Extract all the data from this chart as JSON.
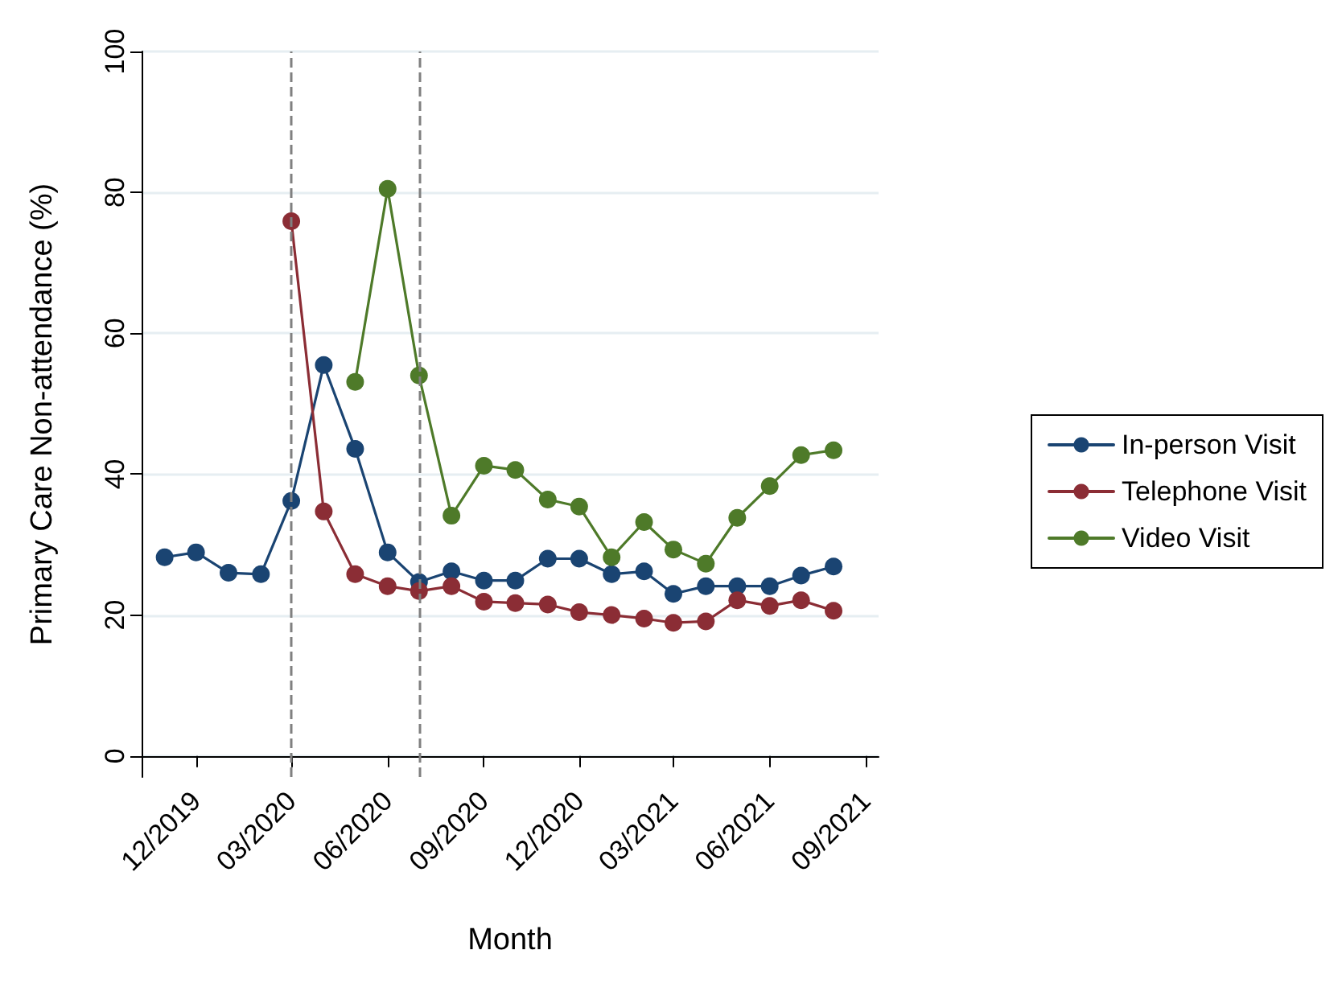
{
  "chart_data": {
    "type": "line",
    "xlabel": "Month",
    "ylabel": "Primary Care Non-attendance (%)",
    "x": [
      "2019-11",
      "2019-12",
      "2020-01",
      "2020-02",
      "2020-03",
      "2020-04",
      "2020-05",
      "2020-06",
      "2020-07",
      "2020-08",
      "2020-09",
      "2020-10",
      "2020-11",
      "2020-12",
      "2021-01",
      "2021-02",
      "2021-03",
      "2021-04",
      "2021-05",
      "2021-06",
      "2021-07",
      "2021-08"
    ],
    "series": [
      {
        "name": "In-person Visit",
        "color": "#1a4472",
        "values": [
          28.2,
          28.9,
          26.0,
          25.8,
          36.2,
          55.5,
          43.6,
          28.9,
          24.7,
          26.2,
          24.9,
          24.9,
          28.0,
          28.0,
          25.8,
          26.2,
          23.0,
          24.1,
          24.1,
          24.1,
          25.6,
          26.9
        ]
      },
      {
        "name": "Telephone Visit",
        "color": "#8b2d35",
        "values": [
          null,
          null,
          null,
          null,
          75.9,
          34.7,
          25.8,
          24.1,
          23.4,
          24.1,
          21.9,
          21.7,
          21.5,
          20.4,
          20.0,
          19.5,
          18.9,
          19.1,
          22.1,
          21.3,
          22.1,
          20.6
        ]
      },
      {
        "name": "Video Visit",
        "color": "#4e7a29",
        "values": [
          null,
          null,
          null,
          null,
          null,
          null,
          53.1,
          80.5,
          54.0,
          34.1,
          41.2,
          40.6,
          36.4,
          35.4,
          28.2,
          33.2,
          29.3,
          27.3,
          33.8,
          38.3,
          42.7,
          43.4
        ]
      }
    ],
    "xlim": [
      "2019-10-10",
      "2021-09-13"
    ],
    "xticks": [
      {
        "value": "2019-12",
        "label": "12/2019"
      },
      {
        "value": "2020-03",
        "label": "03/2020"
      },
      {
        "value": "2020-06",
        "label": "06/2020"
      },
      {
        "value": "2020-09",
        "label": "09/2020"
      },
      {
        "value": "2020-12",
        "label": "12/2020"
      },
      {
        "value": "2021-03",
        "label": "03/2021"
      },
      {
        "value": "2021-06",
        "label": "06/2021"
      },
      {
        "value": "2021-09",
        "label": "09/2021"
      }
    ],
    "ylim": [
      -3,
      100
    ],
    "yticks": [
      0,
      20,
      40,
      60,
      80,
      100
    ],
    "ref_lines": [
      {
        "axis": "x",
        "value": "2020-03",
        "color": "#808080",
        "line_style": "dashed"
      },
      {
        "axis": "x",
        "value": "2020-07",
        "color": "#808080",
        "line_style": "dashed"
      }
    ],
    "grid": "y",
    "legend": "right",
    "marker": "circle",
    "line_style": "solid"
  }
}
